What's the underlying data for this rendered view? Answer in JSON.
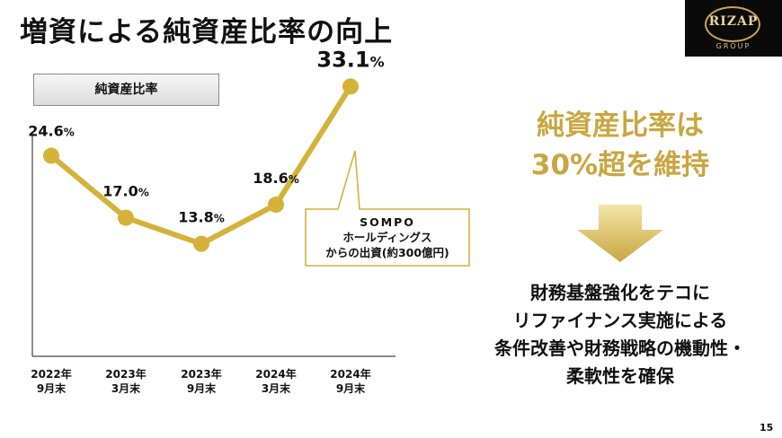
{
  "title": "増資による純資産比率の向上",
  "logo": {
    "name": "RIZAP",
    "sub": "GROUP"
  },
  "chart_label": "純資産比率",
  "chart_data": {
    "type": "line",
    "title": "純資産比率",
    "categories": [
      [
        "2022年",
        "9月末"
      ],
      [
        "2023年",
        "3月末"
      ],
      [
        "2023年",
        "9月末"
      ],
      [
        "2024年",
        "3月末"
      ],
      [
        "2024年",
        "9月末"
      ]
    ],
    "values": [
      24.6,
      17.0,
      13.8,
      18.6,
      33.1
    ],
    "value_labels": [
      "24.6",
      "17.0",
      "13.8",
      "18.6",
      "33.1"
    ],
    "unit": "%",
    "ylim": [
      0,
      36
    ],
    "grid": false,
    "series_color": "#d4b23a",
    "callout": {
      "lines": [
        "SOMPO",
        "ホールディングス",
        "からの出資(約300億円)"
      ]
    }
  },
  "right": {
    "headline": [
      "純資産比率は",
      "30%超を維持"
    ],
    "body": [
      "財務基盤強化をテコに",
      "リファイナンス実施による",
      "条件改善や財務戦略の機動性・",
      "柔軟性を確保"
    ]
  },
  "page_number": "15",
  "colors": {
    "gold": "#c9a640",
    "line": "#d4b23a",
    "arrow_top": "#f3e5a8",
    "arrow_bottom": "#c9a640"
  }
}
